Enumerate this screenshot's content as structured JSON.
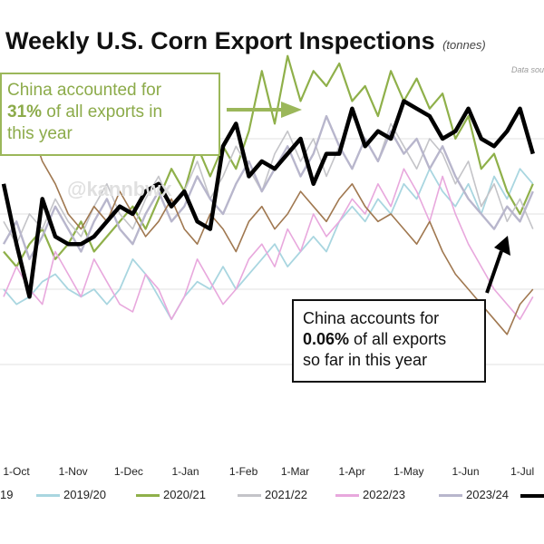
{
  "title": "Weekly U.S. Corn Export Inspections",
  "subtitle": "(tonnes)",
  "source_note": "Data sou",
  "watermark": "@kannbwx",
  "annotation_green": {
    "line1": "China accounted for",
    "line2_bold": "31%",
    "line2_rest": " of all exports in",
    "line3": "this year"
  },
  "annotation_black": {
    "line1": "China accounts for",
    "line2_bold": "0.06%",
    "line2_rest": " of all exports",
    "line3": "so far in this year"
  },
  "legend": [
    {
      "label": "19",
      "color": "#9a9a9a"
    },
    {
      "label": "2019/20",
      "color": "#a9d6e0"
    },
    {
      "label": "2020/21",
      "color": "#8fb04a"
    },
    {
      "label": "2021/22",
      "color": "#c4c4c8"
    },
    {
      "label": "2022/23",
      "color": "#e8a8dd"
    },
    {
      "label": "2023/24",
      "color": "#b8b6cc"
    },
    {
      "label": "",
      "color": "#000000"
    }
  ],
  "chart_data": {
    "type": "line",
    "title": "Weekly U.S. Corn Export Inspections",
    "subtitle": "(tonnes)",
    "xlabel": "",
    "ylabel": "",
    "x_ticks": [
      "1-Oct",
      "1-Nov",
      "1-Dec",
      "1-Jan",
      "1-Feb",
      "1-Mar",
      "1-Apr",
      "1-May",
      "1-Jun",
      "1-Jul"
    ],
    "x_tick_weeks": [
      0,
      4.4,
      8.7,
      13.1,
      17.6,
      21.6,
      26,
      30.4,
      34.8,
      39.2
    ],
    "ylim": [
      0,
      5
    ],
    "grid": "horizontal",
    "legend_position": "bottom",
    "series": [
      {
        "name": "2019/20",
        "color": "#a9d6e0",
        "width": 1.8,
        "values": [
          2.0,
          1.8,
          1.9,
          2.1,
          2.2,
          2.0,
          1.9,
          2.0,
          1.8,
          2.0,
          2.4,
          2.2,
          1.9,
          1.6,
          1.9,
          2.1,
          2.0,
          2.3,
          2.0,
          2.2,
          2.4,
          2.6,
          2.3,
          2.5,
          2.7,
          2.5,
          2.9,
          3.1,
          2.9,
          3.2,
          3.0,
          3.4,
          3.2,
          3.6,
          3.3,
          3.1,
          3.4,
          3.0,
          3.5,
          3.2,
          3.6,
          3.4
        ]
      },
      {
        "name": "2020/21",
        "color": "#8fb04a",
        "width": 2.2,
        "values": [
          2.5,
          2.3,
          2.6,
          2.8,
          2.4,
          2.6,
          2.9,
          2.5,
          2.7,
          2.9,
          3.1,
          2.8,
          3.2,
          3.6,
          3.3,
          3.9,
          3.5,
          3.9,
          3.6,
          4.1,
          4.9,
          4.2,
          5.1,
          4.5,
          4.9,
          4.7,
          5.0,
          4.5,
          4.7,
          4.3,
          4.9,
          4.5,
          4.8,
          4.4,
          4.6,
          4.0,
          4.3,
          3.6,
          3.8,
          3.3,
          3.0,
          3.4
        ]
      },
      {
        "name": "2021/22",
        "color": "#c4c4c8",
        "width": 1.6,
        "values": [
          2.9,
          2.6,
          3.0,
          2.8,
          3.2,
          2.9,
          2.7,
          3.1,
          3.4,
          3.0,
          2.8,
          3.2,
          3.5,
          3.1,
          3.3,
          3.7,
          3.2,
          3.5,
          3.9,
          3.6,
          3.3,
          3.8,
          4.1,
          3.7,
          4.0,
          3.5,
          3.9,
          4.3,
          4.0,
          3.7,
          4.2,
          3.9,
          3.6,
          4.0,
          3.8,
          3.4,
          3.7,
          3.1,
          3.4,
          2.9,
          3.2,
          2.8
        ]
      },
      {
        "name": "2022/23",
        "color": "#e8a8dd",
        "width": 1.6,
        "values": [
          1.9,
          2.3,
          2.0,
          1.8,
          2.5,
          2.2,
          1.9,
          2.4,
          2.1,
          1.8,
          1.7,
          2.2,
          2.0,
          1.6,
          1.9,
          2.4,
          2.1,
          1.8,
          2.0,
          2.4,
          2.6,
          2.3,
          2.8,
          2.5,
          3.0,
          2.7,
          2.9,
          3.2,
          3.0,
          3.4,
          3.1,
          3.6,
          3.3,
          2.9,
          3.5,
          3.0,
          2.6,
          2.3,
          2.0,
          1.8,
          1.6,
          1.9
        ]
      },
      {
        "name": "2023/24",
        "color": "#b8b6cc",
        "width": 2.4,
        "values": [
          2.6,
          2.9,
          2.4,
          2.7,
          3.1,
          2.8,
          2.5,
          2.9,
          3.2,
          2.8,
          2.6,
          3.0,
          3.3,
          2.9,
          3.1,
          3.5,
          3.2,
          3.0,
          3.4,
          3.7,
          3.3,
          3.6,
          3.9,
          3.5,
          3.8,
          4.3,
          3.9,
          3.6,
          4.0,
          3.7,
          4.1,
          3.8,
          4.0,
          3.6,
          3.9,
          3.5,
          3.2,
          3.0,
          2.8,
          3.1,
          2.9,
          3.3
        ]
      },
      {
        "name": "",
        "color": "#a07850",
        "width": 1.6,
        "values": [
          4.1,
          3.8,
          4.2,
          3.7,
          3.4,
          3.0,
          2.8,
          3.1,
          2.9,
          3.3,
          3.0,
          2.7,
          2.9,
          3.2,
          2.8,
          2.6,
          3.0,
          2.8,
          2.5,
          2.9,
          3.1,
          2.8,
          3.0,
          3.3,
          3.1,
          2.9,
          3.2,
          3.4,
          3.1,
          2.9,
          3.0,
          2.8,
          2.6,
          2.9,
          2.5,
          2.2,
          2.0,
          1.8,
          1.6,
          1.4,
          1.8,
          2.0
        ]
      },
      {
        "name": "",
        "color": "#000000",
        "width": 4.5,
        "values": [
          3.4,
          2.6,
          1.9,
          3.2,
          2.7,
          2.6,
          2.6,
          2.7,
          2.9,
          3.1,
          3.0,
          3.3,
          3.4,
          3.1,
          3.3,
          2.9,
          2.8,
          3.9,
          4.2,
          3.5,
          3.7,
          3.6,
          3.8,
          4.0,
          3.4,
          3.8,
          3.8,
          4.4,
          3.9,
          4.1,
          4.0,
          4.5,
          4.4,
          4.3,
          4.0,
          4.1,
          4.4,
          4.0,
          3.9,
          4.1,
          4.4,
          3.8
        ]
      }
    ]
  }
}
